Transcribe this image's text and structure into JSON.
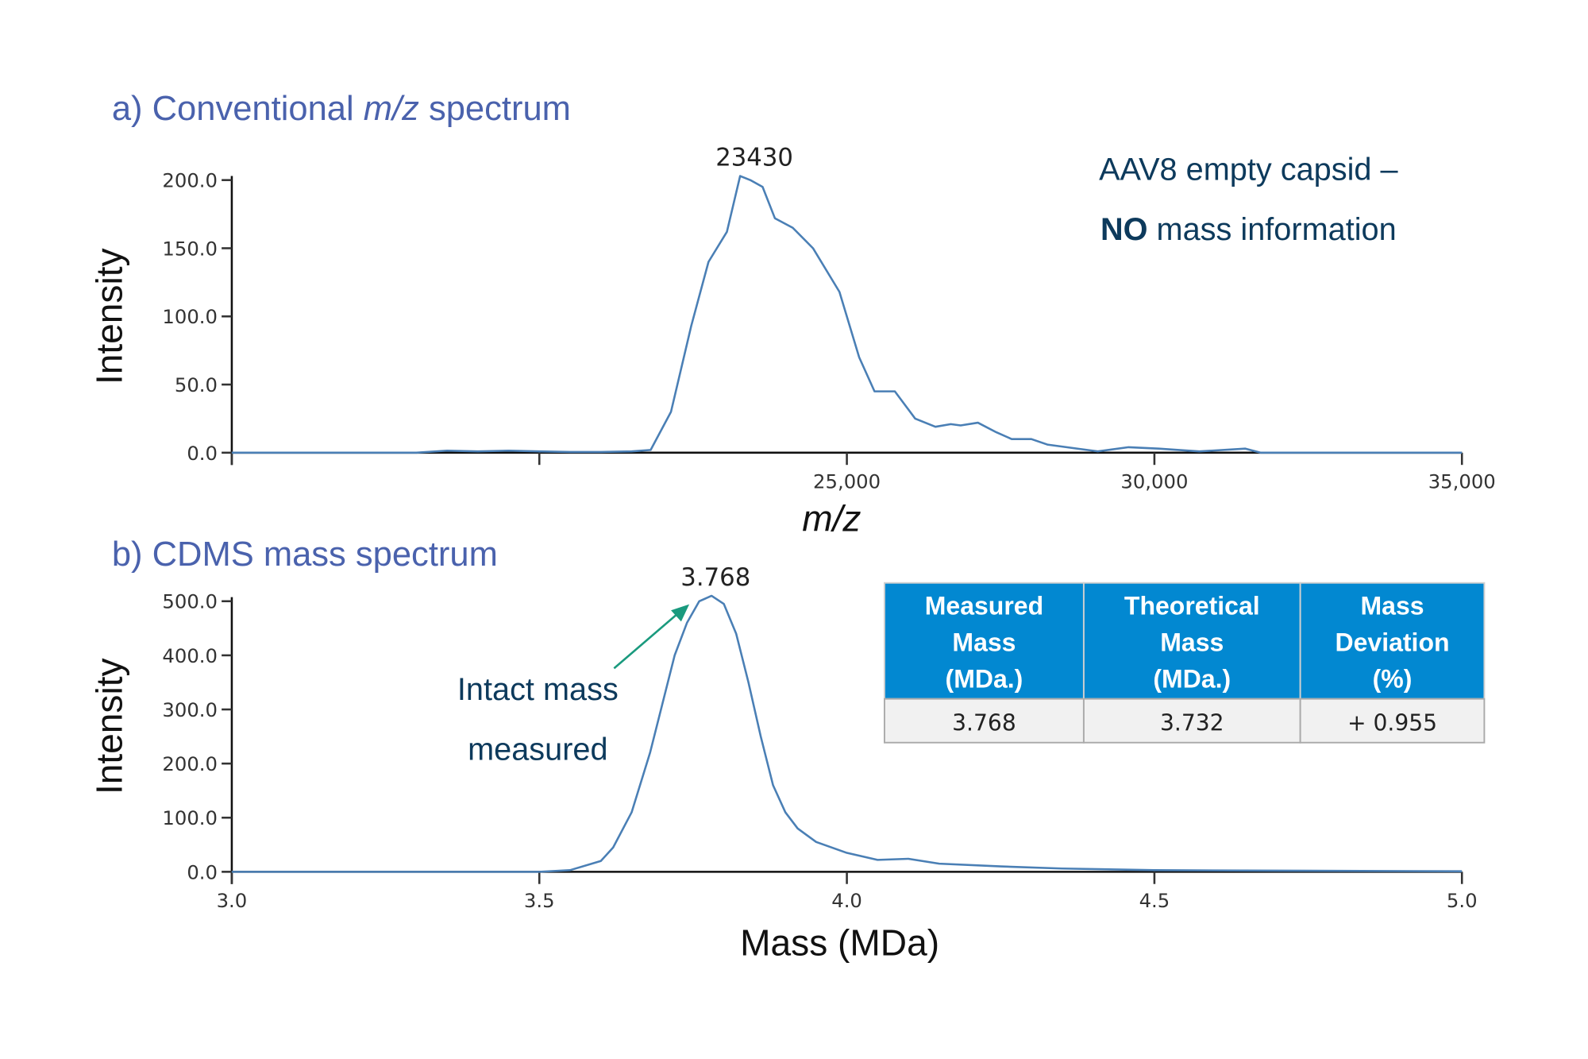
{
  "chart_data": [
    {
      "type": "line",
      "title": "a) Conventional m/z spectrum",
      "title_prefix": "a) Conventional ",
      "title_italic": "m/z",
      "title_suffix": " spectrum",
      "xlabel": "m/z",
      "ylabel": "Intensity",
      "xlim": [
        15000,
        35000
      ],
      "ylim": [
        0,
        200
      ],
      "x_ticks": [
        15000,
        20000,
        25000,
        30000,
        35000
      ],
      "x_tick_labels": [
        "",
        "",
        "25,000",
        "30,000",
        "35,000"
      ],
      "y_ticks": [
        0,
        50,
        100,
        150,
        200
      ],
      "y_tick_labels": [
        "0.0",
        "50.0",
        "100.0",
        "150.0",
        "200.0"
      ],
      "grid": false,
      "line_color": "#4a7fb5",
      "peak_label": {
        "x": 23430,
        "text": "23430"
      },
      "annotation": {
        "line1": "AAV8 empty capsid –",
        "bold": "NO",
        "line2_rest": " mass information"
      },
      "series": [
        {
          "x": [
            15000,
            18000,
            18500,
            19000,
            19500,
            20000,
            20500,
            21000,
            21500,
            21810,
            22140,
            22470,
            22750,
            23050,
            23265,
            23430,
            23630,
            23830,
            24120,
            24450,
            24880,
            25200,
            25450,
            25780,
            26110,
            26440,
            26690,
            26850,
            27130,
            27430,
            27680,
            28000,
            28260,
            28750,
            29080,
            29580,
            30070,
            30730,
            31480,
            31730,
            35000
          ],
          "y": [
            0,
            0,
            1.5,
            1,
            1.5,
            1,
            0.5,
            0.5,
            1,
            2,
            30,
            93,
            140,
            162,
            203,
            200,
            195,
            172,
            165,
            150,
            118,
            70,
            45,
            45,
            25,
            19,
            21,
            20,
            22,
            15,
            10,
            10,
            6,
            3,
            1,
            4,
            3,
            1,
            3,
            0,
            0
          ]
        }
      ]
    },
    {
      "type": "line",
      "title": "b) CDMS mass spectrum",
      "xlabel": "Mass (MDa)",
      "ylabel": "Intensity",
      "xlim": [
        3.0,
        5.0
      ],
      "ylim": [
        0,
        500
      ],
      "x_ticks": [
        3.0,
        3.5,
        4.0,
        4.5,
        5.0
      ],
      "x_tick_labels": [
        "3.0",
        "3.5",
        "4.0",
        "4.5",
        "5.0"
      ],
      "y_ticks": [
        0,
        100,
        200,
        300,
        400,
        500
      ],
      "y_tick_labels": [
        "0.0",
        "100.0",
        "200.0",
        "300.0",
        "400.0",
        "500.0"
      ],
      "grid": false,
      "line_color": "#4a7fb5",
      "peak_label": {
        "x": 3.78,
        "text": "3.768"
      },
      "annotation": {
        "line1": "Intact mass",
        "line2": "measured",
        "arrow_color": "#1a9a7e"
      },
      "series": [
        {
          "x": [
            3.0,
            3.5,
            3.55,
            3.6,
            3.62,
            3.65,
            3.68,
            3.7,
            3.72,
            3.74,
            3.76,
            3.78,
            3.8,
            3.82,
            3.84,
            3.86,
            3.88,
            3.9,
            3.92,
            3.95,
            4.0,
            4.05,
            4.1,
            4.15,
            4.25,
            4.35,
            4.5,
            4.7,
            5.0
          ],
          "y": [
            0,
            0,
            3,
            20,
            45,
            110,
            220,
            310,
            400,
            460,
            500,
            510,
            495,
            440,
            350,
            250,
            160,
            110,
            80,
            55,
            35,
            22,
            24,
            15,
            10,
            6,
            3,
            2,
            1
          ]
        }
      ],
      "table": {
        "header_color": "#0288d1",
        "headers": [
          [
            "Measured",
            "Mass",
            "(MDa.)"
          ],
          [
            "Theoretical",
            "Mass",
            "(MDa.)"
          ],
          [
            "Mass",
            "Deviation",
            "(%)"
          ]
        ],
        "row": [
          "3.768",
          "3.732",
          "+ 0.955"
        ]
      }
    }
  ]
}
